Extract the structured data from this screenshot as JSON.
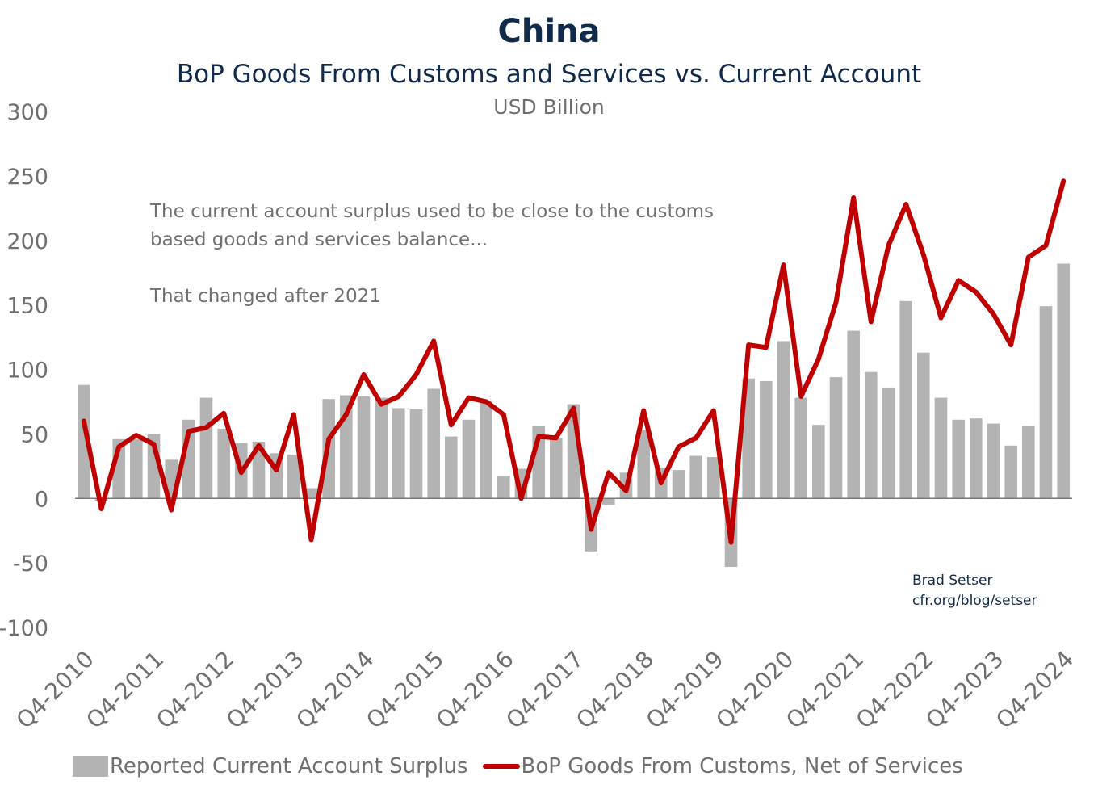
{
  "title": "China",
  "subtitle": "BoP Goods From Customs and Services vs. Current Account",
  "unit": "USD Billion",
  "annotation": {
    "line1": "The current account surplus used to be close to the customs based goods and services balance...",
    "line2": "That changed after 2021"
  },
  "credit": {
    "author": "Brad Setser",
    "url": "cfr.org/blog/setser"
  },
  "legend": {
    "bar_label": "Reported Current Account Surplus",
    "line_label": "BoP Goods From Customs, Net of Services"
  },
  "colors": {
    "bar": "#b3b3b3",
    "line": "#c00000",
    "title": "#0f2a4a",
    "axis_text": "#6f6f6f"
  },
  "chart_data": {
    "type": "bar",
    "title": "China",
    "subtitle": "BoP Goods From Customs and Services vs. Current Account",
    "ylabel": "USD Billion",
    "ylim": [
      -100,
      300
    ],
    "yticks": [
      300,
      250,
      200,
      150,
      100,
      50,
      0,
      -50,
      -100
    ],
    "quarters_start": "Q4-2010",
    "xtick_labels": [
      "Q4-2010",
      "Q4-2011",
      "Q4-2012",
      "Q4-2013",
      "Q4-2014",
      "Q4-2015",
      "Q4-2016",
      "Q4-2017",
      "Q4-2018",
      "Q4-2019",
      "Q4-2020",
      "Q4-2021",
      "Q4-2022",
      "Q4-2023",
      "Q4-2024"
    ],
    "xtick_every": 4,
    "grid": false,
    "legend_position": "bottom",
    "series": [
      {
        "name": "Reported Current Account Surplus",
        "type": "bar",
        "values": [
          88,
          -2,
          46,
          46,
          50,
          30,
          61,
          78,
          54,
          43,
          44,
          35,
          34,
          8,
          77,
          80,
          79,
          78,
          70,
          69,
          85,
          48,
          61,
          76,
          17,
          23,
          56,
          47,
          73,
          -41,
          -5,
          20,
          53,
          24,
          22,
          33,
          32,
          -53,
          93,
          91,
          122,
          78,
          57,
          94,
          130,
          98,
          86,
          153,
          113,
          78,
          61,
          62,
          58,
          41,
          56,
          149,
          182
        ]
      },
      {
        "name": "BoP Goods From Customs, Net of Services",
        "type": "line",
        "values": [
          60,
          -8,
          40,
          49,
          42,
          -9,
          52,
          55,
          66,
          20,
          41,
          22,
          65,
          -32,
          46,
          65,
          96,
          73,
          79,
          96,
          122,
          57,
          78,
          75,
          65,
          0,
          48,
          47,
          70,
          -24,
          20,
          6,
          68,
          12,
          40,
          47,
          68,
          -34,
          119,
          117,
          181,
          79,
          108,
          152,
          233,
          137,
          196,
          228,
          189,
          140,
          169,
          160,
          143,
          119,
          187,
          196,
          246
        ]
      }
    ]
  }
}
